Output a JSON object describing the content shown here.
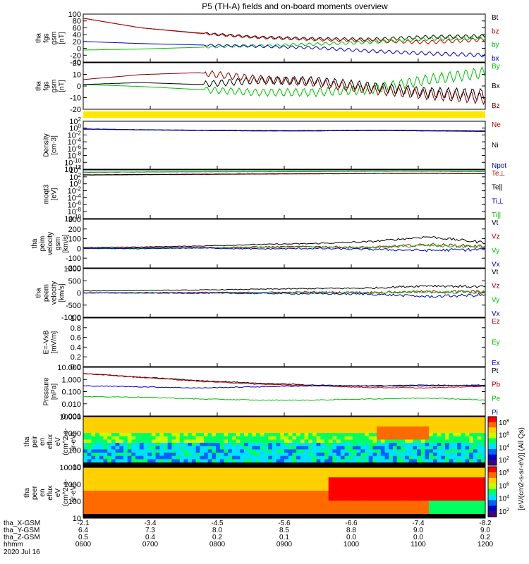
{
  "figure": {
    "title": "P5 (TH-A) fields and on-board moments overview",
    "date": "2020 Jul 16",
    "ephemeris": {
      "row_labels": [
        "tha_X-GSM",
        "tha_Y-GSM",
        "tha_Z-GSM",
        "hhmm"
      ],
      "columns": [
        {
          "x": "-2.1",
          "y": "6.4",
          "z": "0.5",
          "t": "0600"
        },
        {
          "x": "-3.4",
          "y": "7.3",
          "z": "0.4",
          "t": "0700"
        },
        {
          "x": "-4.5",
          "y": "8.0",
          "z": "0.2",
          "t": "0800"
        },
        {
          "x": "-5.6",
          "y": "8.5",
          "z": "0.1",
          "t": "0900"
        },
        {
          "x": "-6.6",
          "y": "8.8",
          "z": "0.0",
          "t": "1000"
        },
        {
          "x": "-7.4",
          "y": "9.0",
          "z": "0.0",
          "t": "1100"
        },
        {
          "x": "-8.2",
          "y": "9.0",
          "z": "0.2",
          "t": "1200"
        }
      ]
    },
    "colorbar": {
      "label": "[eV/(cm2-s-sr-eV)] (All Qs)",
      "upper_ticks": [
        "10^8",
        "10^6",
        "10^4",
        "10^2"
      ],
      "lower_ticks": [
        "10^8",
        "10^6",
        "10^4",
        "10^2"
      ],
      "colors": [
        "#ff0000",
        "#ff6a00",
        "#ffd000",
        "#c8ff00",
        "#00ff60",
        "#00e0ff",
        "#0060ff",
        "#0000c0",
        "#400080"
      ]
    }
  },
  "chart_data": [
    {
      "type": "line",
      "panel": "fgs_gsm_mag",
      "ylabel": [
        "tha",
        "fgs",
        "gsm",
        "[nT]"
      ],
      "y_ticks": [
        "100",
        "80",
        "60",
        "40",
        "20",
        "0",
        "-20",
        "-40"
      ],
      "ylim": [
        -40,
        100
      ],
      "series": [
        {
          "name": "Bt",
          "color": "#000000",
          "values": [
            88,
            60,
            45,
            33,
            28,
            26,
            33,
            35
          ]
        },
        {
          "name": "bz",
          "color": "#c00000",
          "values": [
            88,
            60,
            44,
            32,
            26,
            22,
            18,
            26
          ]
        },
        {
          "name": "by",
          "color": "#00c000",
          "values": [
            -5,
            -2,
            3,
            8,
            12,
            18,
            28,
            30
          ]
        },
        {
          "name": "bx",
          "color": "#0000c0",
          "values": [
            20,
            14,
            10,
            6,
            2,
            -8,
            -15,
            -20
          ]
        }
      ]
    },
    {
      "type": "line",
      "panel": "fgs_gsm_components",
      "ylabel": [
        "tha",
        "fgs",
        "gsm",
        "[nT]"
      ],
      "y_ticks": [
        "20",
        "10",
        "0",
        "-10",
        "-20"
      ],
      "ylim": [
        -25,
        22
      ],
      "series": [
        {
          "name": "By",
          "color": "#00c000",
          "values": [
            0,
            -2,
            -5,
            -8,
            -8,
            -5,
            5,
            12
          ]
        },
        {
          "name": "Bx",
          "color": "#000000",
          "values": [
            0,
            2,
            0,
            4,
            4,
            -2,
            -8,
            -10
          ]
        },
        {
          "name": "Bz",
          "color": "#800000",
          "values": [
            5,
            10,
            12,
            6,
            2,
            -5,
            -10,
            -14
          ]
        }
      ]
    },
    {
      "type": "line",
      "panel": "density",
      "ylabel": [
        "Density",
        "[cm-3]"
      ],
      "y_ticks": [
        "10^2",
        "10^0",
        "10^-2",
        "10^-4",
        "10^-6",
        "10^-8",
        "10^-10",
        "10^-12"
      ],
      "log_scale": true,
      "series": [
        {
          "name": "Ne",
          "color": "#c00000",
          "values": [
            0.5,
            0.3,
            0.2,
            0.15,
            0.15,
            0.2,
            0.15,
            0.1
          ]
        },
        {
          "name": "Ni",
          "color": "#000000",
          "values": [
            0.6,
            0.35,
            0.25,
            0.2,
            0.2,
            0.25,
            0.2,
            0.15
          ]
        },
        {
          "name": "Npot",
          "color": "#0000c0",
          "values": [
            0.5,
            0.3,
            0.2,
            0.15,
            0.15,
            0.2,
            0.15,
            0.12
          ]
        }
      ]
    },
    {
      "type": "line",
      "panel": "temperature",
      "ylabel": [
        "moqt3",
        "[eV]"
      ],
      "y_ticks": [
        "10^4",
        "10^2",
        "10^0",
        "10^-2",
        "10^-4",
        "10^-6",
        "10^-8",
        "10^-10"
      ],
      "log_scale": true,
      "series": [
        {
          "name": "Te⊥",
          "color": "#c00000",
          "values": [
            300,
            400,
            500,
            600,
            700,
            900,
            1000,
            800
          ]
        },
        {
          "name": "Te||",
          "color": "#000000",
          "values": [
            400,
            500,
            600,
            700,
            800,
            1000,
            1200,
            900
          ]
        },
        {
          "name": "Ti⊥",
          "color": "#0000c0",
          "values": [
            2000,
            2500,
            3000,
            3000,
            3500,
            4000,
            4000,
            3500
          ]
        },
        {
          "name": "Ti||",
          "color": "#00c000",
          "values": [
            2200,
            2600,
            3100,
            3100,
            3600,
            4200,
            4100,
            3600
          ]
        }
      ]
    },
    {
      "type": "line",
      "panel": "peim_velocity",
      "ylabel": [
        "tha",
        "peim",
        "velocity",
        "gsm",
        "[km/s]"
      ],
      "y_ticks": [
        "300",
        "200",
        "100",
        "0",
        "-100",
        "-200"
      ],
      "ylim": [
        -200,
        300
      ],
      "series": [
        {
          "name": "Vt",
          "color": "#000000",
          "values": [
            10,
            15,
            25,
            40,
            50,
            70,
            120,
            60
          ]
        },
        {
          "name": "Vz",
          "color": "#c00000",
          "values": [
            0,
            5,
            10,
            15,
            20,
            10,
            40,
            20
          ]
        },
        {
          "name": "Vy",
          "color": "#00c000",
          "values": [
            0,
            -5,
            5,
            10,
            15,
            5,
            30,
            15
          ]
        },
        {
          "name": "Vx",
          "color": "#0000c0",
          "values": [
            0,
            0,
            5,
            -5,
            0,
            -10,
            -20,
            -10
          ]
        }
      ]
    },
    {
      "type": "line",
      "panel": "peem_velocity",
      "ylabel": [
        "tha",
        "peem",
        "velocity",
        "[km/s]"
      ],
      "y_ticks": [
        "1000",
        "500",
        "0",
        "-500",
        "-1000"
      ],
      "ylim": [
        -1000,
        1000
      ],
      "series": [
        {
          "name": "Vt",
          "color": "#000000",
          "values": [
            80,
            100,
            120,
            150,
            180,
            200,
            300,
            250
          ]
        },
        {
          "name": "Vz",
          "color": "#c00000",
          "values": [
            0,
            10,
            20,
            20,
            30,
            20,
            50,
            40
          ]
        },
        {
          "name": "Vy",
          "color": "#00c000",
          "values": [
            0,
            -10,
            0,
            10,
            20,
            10,
            40,
            30
          ]
        },
        {
          "name": "Vx",
          "color": "#0000c0",
          "values": [
            0,
            0,
            -10,
            -20,
            -30,
            -50,
            -150,
            -80
          ]
        }
      ]
    },
    {
      "type": "line",
      "panel": "efield",
      "ylabel": [
        "E=-VxB",
        "[mV/m]"
      ],
      "y_ticks": [
        "1.0",
        "0.8",
        "0.6",
        "0.4",
        "0.2",
        "0.0"
      ],
      "ylim": [
        0,
        1
      ],
      "series": [
        {
          "name": "Ez",
          "color": "#c00000",
          "values": []
        },
        {
          "name": "Ey",
          "color": "#00c000",
          "values": []
        },
        {
          "name": "Ex",
          "color": "#0000c0",
          "values": []
        }
      ]
    },
    {
      "type": "line",
      "panel": "pressure",
      "ylabel": [
        "Pressure",
        "[nPa]"
      ],
      "y_ticks": [
        "10.000",
        "1.000",
        "0.100",
        "0.010",
        "0.001"
      ],
      "log_scale": true,
      "series": [
        {
          "name": "Pt",
          "color": "#000000",
          "values": [
            3.0,
            1.5,
            0.8,
            0.5,
            0.35,
            0.28,
            0.3,
            0.35
          ]
        },
        {
          "name": "Pb",
          "color": "#c00000",
          "values": [
            3.0,
            1.4,
            0.7,
            0.42,
            0.3,
            0.22,
            0.2,
            0.28
          ]
        },
        {
          "name": "Pe",
          "color": "#00c000",
          "values": [
            0.04,
            0.035,
            0.025,
            0.02,
            0.02,
            0.025,
            0.03,
            0.02
          ]
        },
        {
          "name": "Pi",
          "color": "#0000c0",
          "values": [
            0.3,
            0.25,
            0.2,
            0.25,
            0.3,
            0.3,
            0.35,
            0.3
          ]
        }
      ]
    },
    {
      "type": "heatmap",
      "panel": "peir_spectrogram",
      "ylabel": [
        "tha",
        "peir",
        "en",
        "eflux",
        "eV",
        "(cm^2-s-",
        "sr-eV)"
      ],
      "y_ticks": [
        "10000",
        "1000",
        "100",
        "10"
      ]
    },
    {
      "type": "heatmap",
      "panel": "peer_spectrogram",
      "ylabel": [
        "tha",
        "peer",
        "en",
        "eflux",
        "eV",
        "(cm^2-s-",
        "sr-eV)"
      ],
      "y_ticks": [
        "10000",
        "1000",
        "100",
        "10"
      ]
    }
  ]
}
